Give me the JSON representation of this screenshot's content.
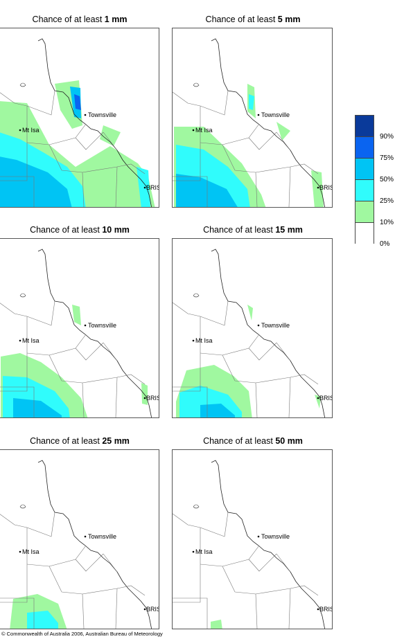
{
  "panels": [
    {
      "prefix": "Chance of at least ",
      "amount": "1 mm",
      "level": 0
    },
    {
      "prefix": "Chance of at least ",
      "amount": "5 mm",
      "level": 1
    },
    {
      "prefix": "Chance of at least ",
      "amount": "10 mm",
      "level": 2
    },
    {
      "prefix": "Chance of at least ",
      "amount": "15 mm",
      "level": 3
    },
    {
      "prefix": "Chance of at least ",
      "amount": "25 mm",
      "level": 4
    },
    {
      "prefix": "Chance of at least ",
      "amount": "50 mm",
      "level": 5
    }
  ],
  "places": {
    "townsville": "Townsville",
    "mtisa": "Mt Isa",
    "bris": "BRIS"
  },
  "legend": {
    "labels": [
      "90%",
      "75%",
      "50%",
      "25%",
      "10%",
      "0%"
    ],
    "colors": [
      "#0a3a9a",
      "#0a64f0",
      "#00c4f4",
      "#30fcfc",
      "#a0f8a0",
      "#ffffff"
    ]
  },
  "copyright": "© Commonwealth of Australia 2006, Australian Bureau of Meteorology"
}
